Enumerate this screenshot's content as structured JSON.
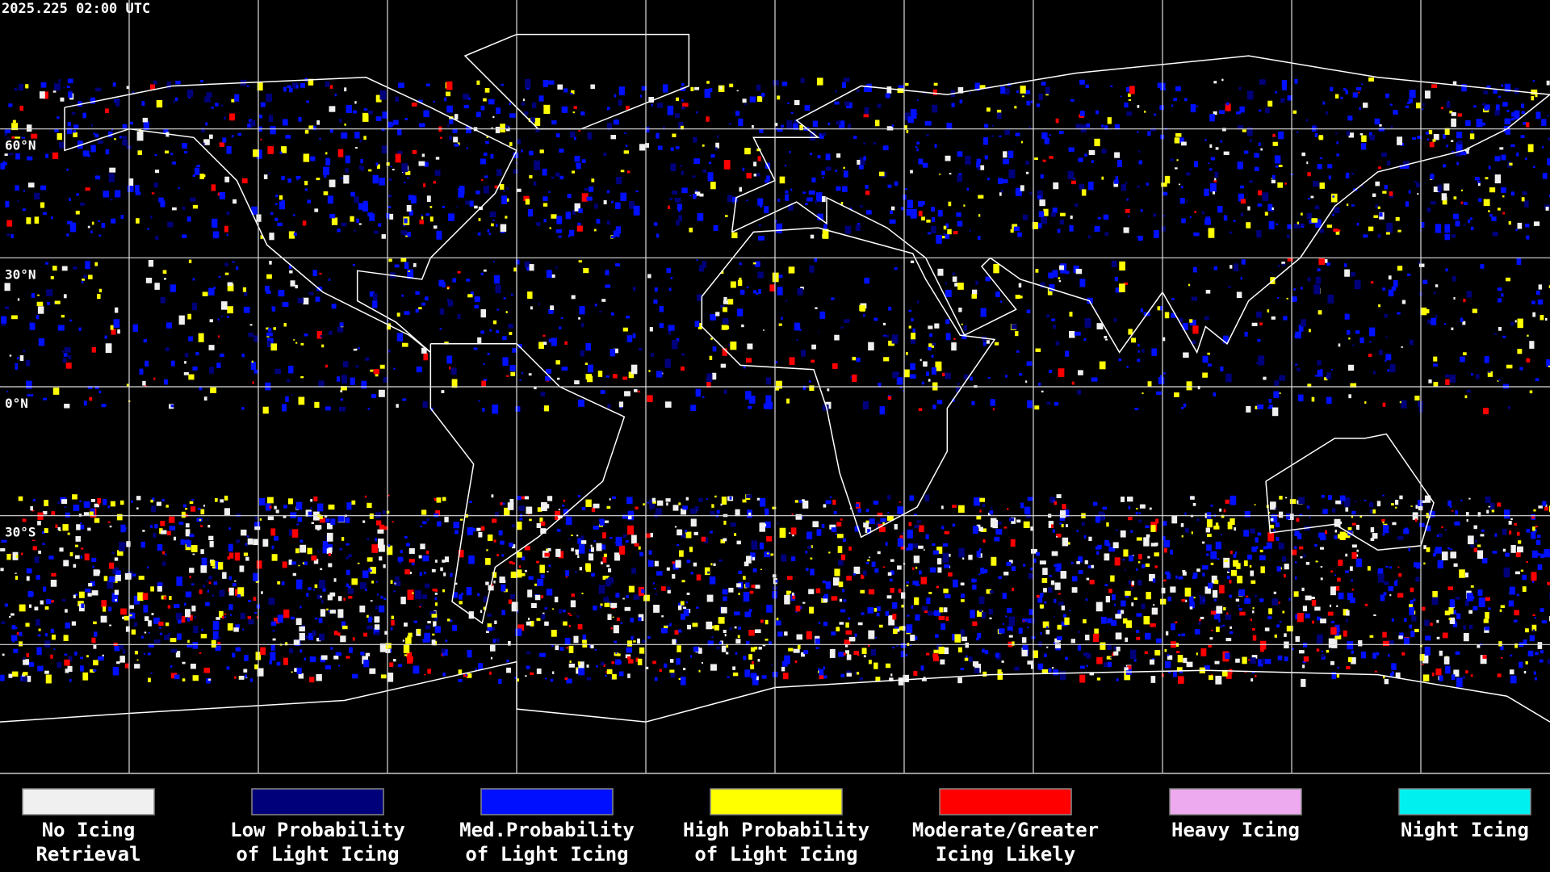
{
  "header": {
    "timestamp": "2025.225 02:00 UTC"
  },
  "latitude_labels": [
    "60°N",
    "30°N",
    "0°N",
    "30°S"
  ],
  "legend": [
    {
      "line1": "No Icing",
      "line2": "Retrieval",
      "color": "#f0f0f0"
    },
    {
      "line1": "Low Probability",
      "line2": "of Light Icing",
      "color": "#00007a"
    },
    {
      "line1": "Med.Probability",
      "line2": "of Light Icing",
      "color": "#0010ff"
    },
    {
      "line1": "High Probability",
      "line2": "of Light Icing",
      "color": "#ffff00"
    },
    {
      "line1": "Moderate/Greater",
      "line2": "Icing Likely",
      "color": "#ff0000"
    },
    {
      "line1": "Heavy Icing",
      "line2": null,
      "color": "#eeaaee"
    },
    {
      "line1": "Night Icing",
      "line2": null,
      "color": "#00f0f0"
    }
  ]
}
